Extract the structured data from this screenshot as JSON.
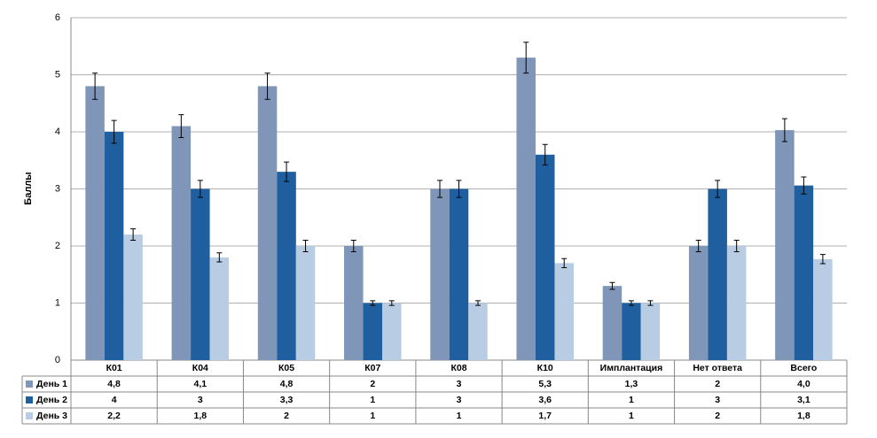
{
  "chart_data": {
    "type": "bar",
    "y_label": "Баллы",
    "categories": [
      "К01",
      "К04",
      "К05",
      "К07",
      "К08",
      "К10",
      "Имплантация",
      "Нет ответа",
      "Всего"
    ],
    "series": [
      {
        "name": "День 1",
        "color": "#7f96b8",
        "values": [
          4.8,
          4.1,
          4.8,
          2,
          3,
          5.3,
          1.3,
          2,
          4.03
        ],
        "value_labels": [
          "4,8",
          "4,1",
          "4,8",
          "2",
          "3",
          "5,3",
          "1,3",
          "2",
          "4,0"
        ],
        "errors": [
          0.23,
          0.2,
          0.23,
          0.1,
          0.15,
          0.27,
          0.06,
          0.1,
          0.2
        ]
      },
      {
        "name": "День 2",
        "color": "#1f5fa0",
        "values": [
          4,
          3,
          3.3,
          1,
          3,
          3.6,
          1,
          3,
          3.06
        ],
        "value_labels": [
          "4",
          "3",
          "3,3",
          "1",
          "3",
          "3,6",
          "1",
          "3",
          "3,1"
        ],
        "errors": [
          0.2,
          0.15,
          0.17,
          0.04,
          0.15,
          0.18,
          0.04,
          0.15,
          0.15
        ]
      },
      {
        "name": "День 3",
        "color": "#b8cce4",
        "values": [
          2.2,
          1.8,
          2,
          1,
          1,
          1.7,
          1,
          2,
          1.77
        ],
        "value_labels": [
          "2,2",
          "1,8",
          "2",
          "1",
          "1",
          "1,7",
          "1",
          "2",
          "1,8"
        ],
        "errors": [
          0.1,
          0.08,
          0.1,
          0.04,
          0.04,
          0.08,
          0.04,
          0.1,
          0.08
        ]
      }
    ],
    "ylim": [
      0,
      6
    ],
    "yticks": [
      0,
      1,
      2,
      3,
      4,
      5,
      6
    ],
    "grid": true
  }
}
